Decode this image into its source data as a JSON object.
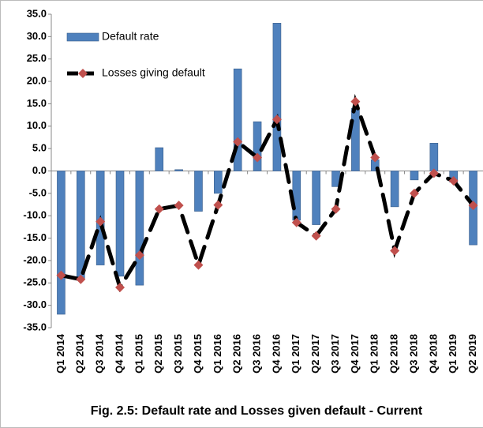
{
  "chart_data": {
    "type": "bar_line",
    "title": "Fig. 2.5: Default rate and Losses given default - Current",
    "categories": [
      "Q1 2014",
      "Q2 2014",
      "Q3 2014",
      "Q4 2014",
      "Q1 2015",
      "Q2 2015",
      "Q3 2015",
      "Q4 2015",
      "Q1 2016",
      "Q2 2016",
      "Q3 2016",
      "Q4 2016",
      "Q1 2017",
      "Q2 2017",
      "Q3 2017",
      "Q4 2017",
      "Q1 2018",
      "Q2 2018",
      "Q3 2018",
      "Q4 2018",
      "Q1 2019",
      "Q2 2019"
    ],
    "series": [
      {
        "name": "Default rate",
        "type": "bar",
        "color": "#4f81bd",
        "values": [
          -32,
          -24,
          -21,
          -23.5,
          -25.5,
          5.2,
          0.3,
          -9,
          -5,
          22.8,
          11,
          33,
          -11,
          -12,
          -3.5,
          14,
          2.5,
          -8,
          -2,
          6.2,
          -2.5,
          -16.5
        ]
      },
      {
        "name": "Losses giving default",
        "type": "line",
        "color": "#000000",
        "marker_color": "#c0504d",
        "values": [
          -23.3,
          -24.2,
          -11.3,
          -26,
          -18.8,
          -8.5,
          -7.7,
          -21,
          -7.6,
          6.5,
          3,
          11.5,
          -11.5,
          -14.5,
          -8.5,
          15.5,
          3,
          -17.8,
          -5,
          -0.5,
          -2.2,
          -7.7
        ]
      }
    ],
    "ylim": [
      -35,
      35
    ],
    "yticks": [
      {
        "value": -35,
        "label": "-35.0"
      },
      {
        "value": -30,
        "label": "-30.0"
      },
      {
        "value": -25,
        "label": "-25.0"
      },
      {
        "value": -20,
        "label": "-20.0"
      },
      {
        "value": -15,
        "label": "-15.0"
      },
      {
        "value": -10,
        "label": "-10.0"
      },
      {
        "value": -5,
        "label": "-5.0"
      },
      {
        "value": 0,
        "label": "0.0"
      },
      {
        "value": 5,
        "label": "5.0"
      },
      {
        "value": 10,
        "label": "10.0"
      },
      {
        "value": 15,
        "label": "15.0"
      },
      {
        "value": 20,
        "label": "20.0"
      },
      {
        "value": 25,
        "label": "25.0"
      },
      {
        "value": 30,
        "label": "30.0"
      },
      {
        "value": 35,
        "label": "35.0"
      }
    ],
    "legend": "top-left"
  }
}
